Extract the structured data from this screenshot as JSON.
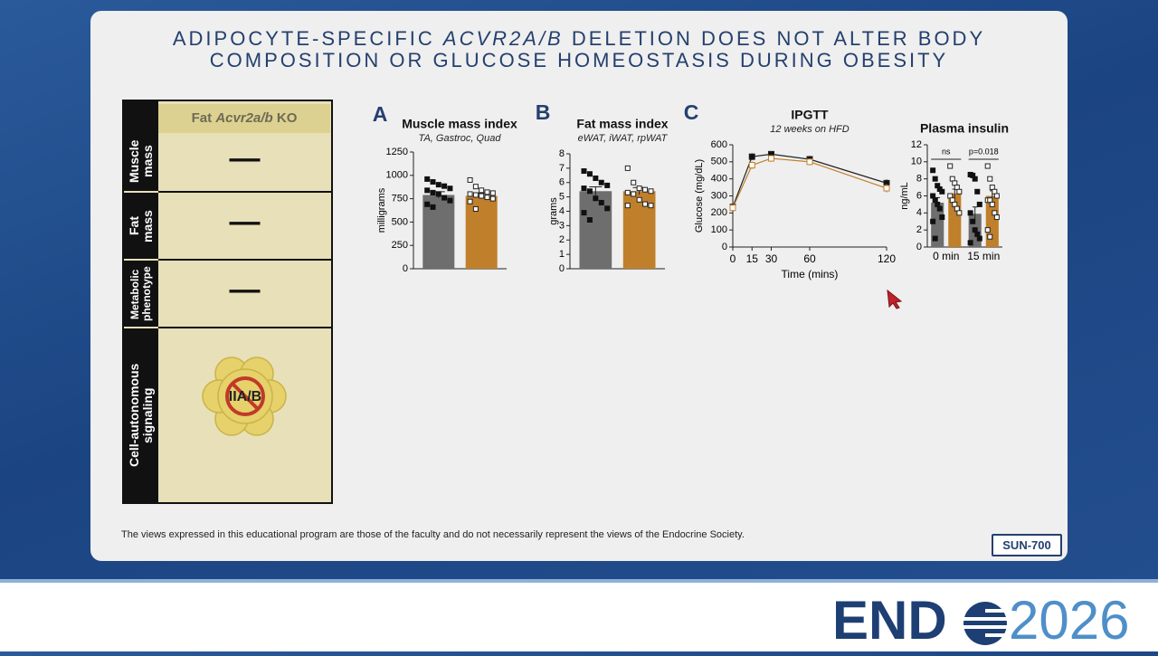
{
  "title": [
    "ADIPOCYTE-SPECIFIC ",
    "ACVR2A/B",
    " DELETION DOES NOT ALTER BODY COMPOSITION OR GLUCOSE HOMEOSTASIS DURING OBESITY"
  ],
  "table": {
    "header": [
      "Fat ",
      "Acvr2a/b",
      " KO"
    ],
    "rows": [
      [
        "Muscle mass",
        "—"
      ],
      [
        "Fat mass",
        "—"
      ],
      [
        "Metabolic phenotype",
        "—"
      ],
      [
        "Cell-autonomous signaling",
        "IIA/B"
      ]
    ]
  },
  "chart_data": [
    {
      "type": "bar",
      "panel_label": "A",
      "title": "Muscle mass index",
      "subtitle": "TA, Gastroc, Quad",
      "ylabel": "milligrams",
      "categories": [
        null
      ],
      "ylim": [
        0,
        1250
      ],
      "yticks": [
        0,
        250,
        500,
        750,
        1000,
        1250
      ],
      "series": [
        {
          "color": "#6e6e6e",
          "marker": "square",
          "values": [
            790
          ],
          "errors": [
            35
          ],
          "points": [
            [
              960,
              930,
              900,
              885,
              860,
              840,
              815,
              800,
              760,
              730,
              690,
              660
            ]
          ]
        },
        {
          "color": "#c07f2a",
          "marker": "open-square",
          "values": [
            780
          ],
          "errors": [
            30
          ],
          "points": [
            [
              950,
              880,
              840,
              820,
              810,
              800,
              790,
              780,
              765,
              750,
              720,
              640
            ]
          ]
        }
      ]
    },
    {
      "type": "bar",
      "panel_label": "B",
      "title": "Fat mass index",
      "subtitle": "eWAT, iWAT, rpWAT",
      "ylabel": "grams",
      "categories": [
        null
      ],
      "ylim": [
        0,
        8
      ],
      "yticks": [
        0,
        1,
        2,
        3,
        4,
        5,
        6,
        7,
        8
      ],
      "series": [
        {
          "color": "#6e6e6e",
          "marker": "square",
          "values": [
            5.4
          ],
          "errors": [
            0.3
          ],
          "points": [
            [
              6.8,
              6.6,
              6.3,
              6.0,
              5.8,
              5.6,
              5.4,
              4.9,
              4.6,
              4.2,
              3.9,
              3.4
            ]
          ]
        },
        {
          "color": "#c07f2a",
          "marker": "open-square",
          "values": [
            5.4
          ],
          "errors": [
            0.25
          ],
          "points": [
            [
              7.0,
              6.0,
              5.6,
              5.5,
              5.4,
              5.3,
              5.2,
              4.8,
              4.5,
              4.4,
              4.4
            ]
          ]
        }
      ]
    },
    {
      "type": "line",
      "panel_label": "C",
      "title": "IPGTT",
      "subtitle": "12 weeks on HFD",
      "xlabel": "Time (mins)",
      "ylabel": "Glucose (mg/dL)",
      "x": [
        0,
        15,
        30,
        60,
        120
      ],
      "xlim": [
        0,
        120
      ],
      "xticks": [
        0,
        15,
        30,
        60,
        120
      ],
      "ylim": [
        0,
        600
      ],
      "yticks": [
        0,
        100,
        200,
        300,
        400,
        500,
        600
      ],
      "series": [
        {
          "color": "#222222",
          "marker": "square",
          "values": [
            235,
            530,
            545,
            515,
            375
          ],
          "errors": [
            12,
            20,
            18,
            20,
            22
          ]
        },
        {
          "color": "#c07f2a",
          "marker": "open-square",
          "values": [
            230,
            480,
            520,
            500,
            345
          ],
          "errors": [
            12,
            22,
            20,
            20,
            25
          ]
        }
      ]
    },
    {
      "type": "bar",
      "title": "Plasma insulin",
      "ylabel": "ng/mL",
      "categories": [
        "0 min",
        "15 min"
      ],
      "annotations": [
        "ns",
        "p=0.018"
      ],
      "ylim": [
        0,
        12
      ],
      "yticks": [
        0,
        2,
        4,
        6,
        8,
        10,
        12
      ],
      "series": [
        {
          "color": "#6e6e6e",
          "marker": "square",
          "values": [
            5.2,
            3.9
          ],
          "errors": [
            0.6,
            0.8
          ],
          "points": [
            [
              9.0,
              8.0,
              7.2,
              6.8,
              6.5,
              6.0,
              5.5,
              5.0,
              4.5,
              3.5,
              3.0,
              1.0
            ],
            [
              8.5,
              8.4,
              8.0,
              6.5,
              5.0,
              4.0,
              3.0,
              2.0,
              1.5,
              1.0,
              0.5
            ]
          ]
        },
        {
          "color": "#c07f2a",
          "marker": "open-square",
          "values": [
            6.3,
            6.0
          ],
          "errors": [
            0.5,
            0.6
          ],
          "points": [
            [
              9.5,
              8.0,
              7.5,
              7.0,
              6.5,
              6.0,
              5.5,
              5.0,
              4.5,
              4.0
            ],
            [
              9.5,
              8.0,
              7.0,
              6.5,
              6.0,
              5.5,
              5.5,
              5.0,
              4.0,
              3.5,
              2.0,
              1.2
            ]
          ]
        }
      ]
    }
  ],
  "footer": {
    "disclaimer": "The views expressed in this educational program are those of the faculty and do not necessarily represent the views of the Endocrine Society.",
    "code": "SUN-700"
  },
  "logo": {
    "left": "END",
    "right": "2026"
  }
}
